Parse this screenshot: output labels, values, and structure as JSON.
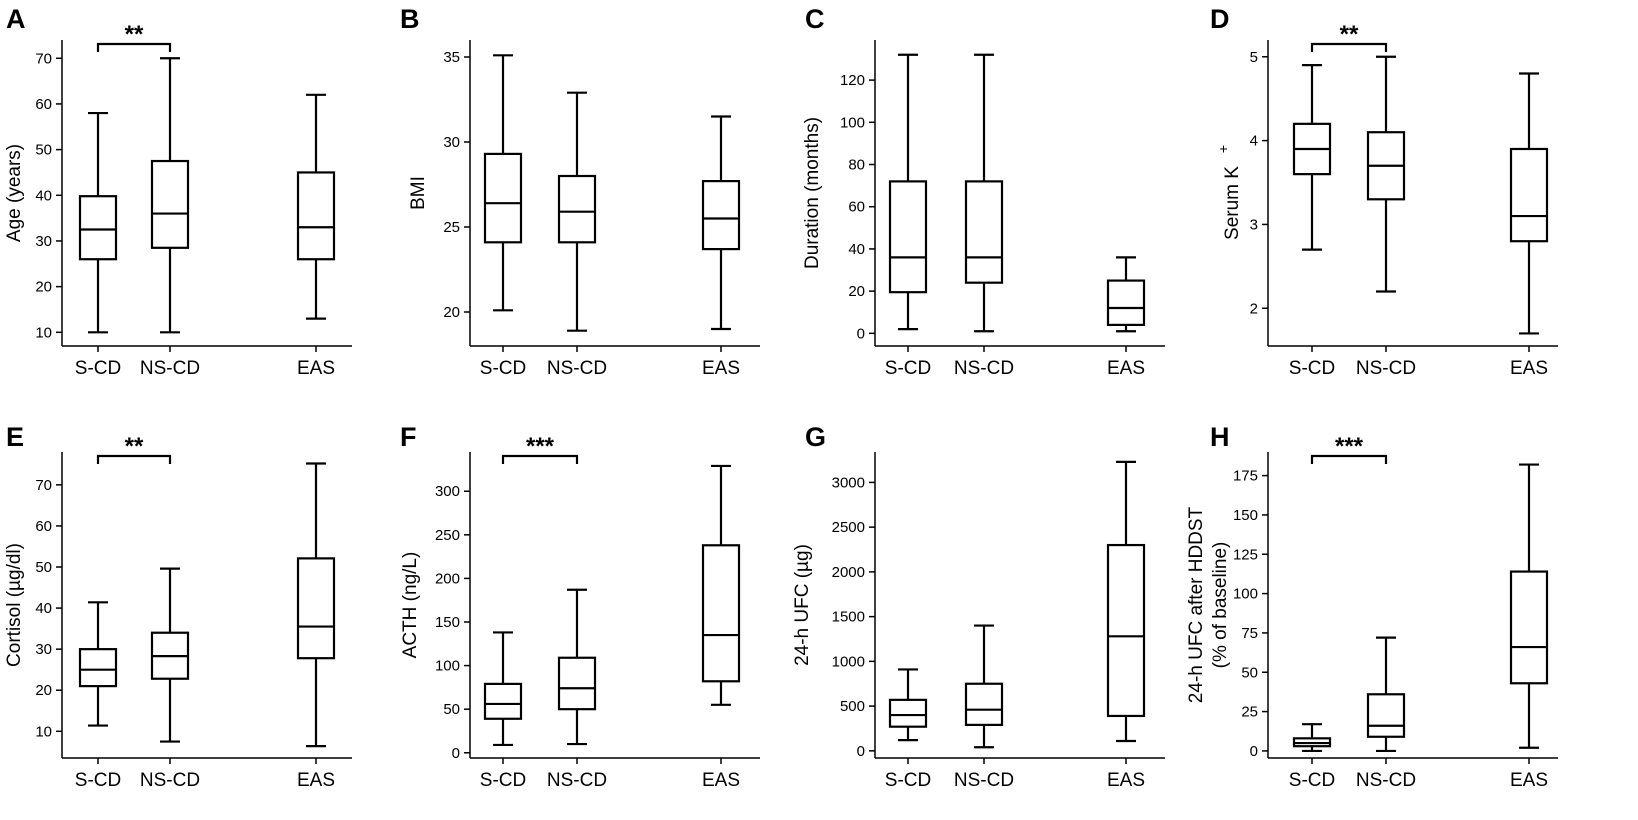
{
  "chart_data": [
    {
      "panel": "A",
      "type": "boxplot",
      "ylabel": "Age (years)",
      "ylabel2": "",
      "ylabel_sup": "",
      "ylim": [
        7,
        74
      ],
      "yticks": [
        10,
        20,
        30,
        40,
        50,
        60,
        70
      ],
      "categories": [
        "S-CD",
        "NS-CD",
        "EAS"
      ],
      "boxes": [
        {
          "min": 10,
          "q1": 26,
          "median": 32.5,
          "q3": 39.8,
          "max": 58
        },
        {
          "min": 10,
          "q1": 28.5,
          "median": 36,
          "q3": 47.5,
          "max": 70
        },
        {
          "min": 13,
          "q1": 26,
          "median": 33,
          "q3": 45,
          "max": 62
        }
      ],
      "significance": {
        "from": 0,
        "to": 1,
        "label": "**"
      }
    },
    {
      "panel": "B",
      "type": "boxplot",
      "ylabel": "BMI",
      "ylabel2": "",
      "ylabel_sup": "",
      "ylim": [
        18,
        36
      ],
      "yticks": [
        20,
        25,
        30,
        35
      ],
      "categories": [
        "S-CD",
        "NS-CD",
        "EAS"
      ],
      "boxes": [
        {
          "min": 20.1,
          "q1": 24.1,
          "median": 26.4,
          "q3": 29.3,
          "max": 35.1
        },
        {
          "min": 18.9,
          "q1": 24.1,
          "median": 25.9,
          "q3": 28.0,
          "max": 32.9
        },
        {
          "min": 19.0,
          "q1": 23.7,
          "median": 25.5,
          "q3": 27.7,
          "max": 31.5
        }
      ],
      "significance": null
    },
    {
      "panel": "C",
      "type": "boxplot",
      "ylabel": "Duration (months)",
      "ylabel2": "",
      "ylabel_sup": "",
      "ylim": [
        -6,
        139
      ],
      "yticks": [
        0,
        20,
        40,
        60,
        80,
        100,
        120
      ],
      "categories": [
        "S-CD",
        "NS-CD",
        "EAS"
      ],
      "boxes": [
        {
          "min": 2,
          "q1": 19.5,
          "median": 36,
          "q3": 72,
          "max": 132
        },
        {
          "min": 1,
          "q1": 24,
          "median": 36,
          "q3": 72,
          "max": 132
        },
        {
          "min": 1,
          "q1": 4,
          "median": 12,
          "q3": 25,
          "max": 36
        }
      ],
      "significance": null
    },
    {
      "panel": "D",
      "type": "boxplot",
      "ylabel": "Serum K",
      "ylabel2": "",
      "ylabel_sup": "+",
      "ylim": [
        1.55,
        5.2
      ],
      "yticks": [
        2,
        3,
        4,
        5
      ],
      "categories": [
        "S-CD",
        "NS-CD",
        "EAS"
      ],
      "boxes": [
        {
          "min": 2.7,
          "q1": 3.6,
          "median": 3.9,
          "q3": 4.2,
          "max": 4.9
        },
        {
          "min": 2.2,
          "q1": 3.3,
          "median": 3.7,
          "q3": 4.1,
          "max": 5.0
        },
        {
          "min": 1.7,
          "q1": 2.8,
          "median": 3.1,
          "q3": 3.9,
          "max": 4.8
        }
      ],
      "significance": {
        "from": 0,
        "to": 1,
        "label": "**"
      }
    },
    {
      "panel": "E",
      "type": "boxplot",
      "ylabel": "Cortisol (µg/dl)",
      "ylabel2": "",
      "ylabel_sup": "",
      "ylim": [
        3.5,
        78
      ],
      "yticks": [
        10,
        20,
        30,
        40,
        50,
        60,
        70
      ],
      "categories": [
        "S-CD",
        "NS-CD",
        "EAS"
      ],
      "boxes": [
        {
          "min": 11.4,
          "q1": 21,
          "median": 25,
          "q3": 30,
          "max": 41.4
        },
        {
          "min": 7.5,
          "q1": 22.8,
          "median": 28.3,
          "q3": 34,
          "max": 49.6
        },
        {
          "min": 6.4,
          "q1": 27.8,
          "median": 35.5,
          "q3": 52.1,
          "max": 75.2
        }
      ],
      "significance": {
        "from": 0,
        "to": 1,
        "label": "**"
      }
    },
    {
      "panel": "F",
      "type": "boxplot",
      "ylabel": "ACTH (ng/L)",
      "ylabel2": "",
      "ylabel_sup": "",
      "ylim": [
        -6,
        345
      ],
      "yticks": [
        0,
        50,
        100,
        150,
        200,
        250,
        300
      ],
      "categories": [
        "S-CD",
        "NS-CD",
        "EAS"
      ],
      "boxes": [
        {
          "min": 9,
          "q1": 39,
          "median": 56,
          "q3": 79,
          "max": 138
        },
        {
          "min": 10,
          "q1": 50,
          "median": 74,
          "q3": 109,
          "max": 187
        },
        {
          "min": 55,
          "q1": 82,
          "median": 135,
          "q3": 238,
          "max": 329
        }
      ],
      "significance": {
        "from": 0,
        "to": 1,
        "label": "***"
      }
    },
    {
      "panel": "G",
      "type": "boxplot",
      "ylabel": "24-h UFC (µg)",
      "ylabel2": "",
      "ylabel_sup": "",
      "ylim": [
        -80,
        3340
      ],
      "yticks": [
        0,
        500,
        1000,
        1500,
        2000,
        2500,
        3000
      ],
      "categories": [
        "S-CD",
        "NS-CD",
        "EAS"
      ],
      "boxes": [
        {
          "min": 120,
          "q1": 270,
          "median": 400,
          "q3": 570,
          "max": 910
        },
        {
          "min": 40,
          "q1": 290,
          "median": 460,
          "q3": 750,
          "max": 1400
        },
        {
          "min": 110,
          "q1": 390,
          "median": 1280,
          "q3": 2300,
          "max": 3230
        }
      ],
      "significance": null
    },
    {
      "panel": "H",
      "type": "boxplot",
      "ylabel": "24-h UFC after HDDST",
      "ylabel2": "(% of baseline)",
      "ylabel_sup": "",
      "ylim": [
        -4.5,
        190
      ],
      "yticks": [
        0,
        25,
        50,
        75,
        100,
        125,
        150,
        175
      ],
      "categories": [
        "S-CD",
        "NS-CD",
        "EAS"
      ],
      "boxes": [
        {
          "min": 0,
          "q1": 3,
          "median": 5,
          "q3": 8,
          "max": 17
        },
        {
          "min": 0,
          "q1": 9,
          "median": 16,
          "q3": 36,
          "max": 72
        },
        {
          "min": 2,
          "q1": 43,
          "median": 66,
          "q3": 114,
          "max": 182
        }
      ],
      "significance": {
        "from": 0,
        "to": 1,
        "label": "***"
      }
    }
  ]
}
